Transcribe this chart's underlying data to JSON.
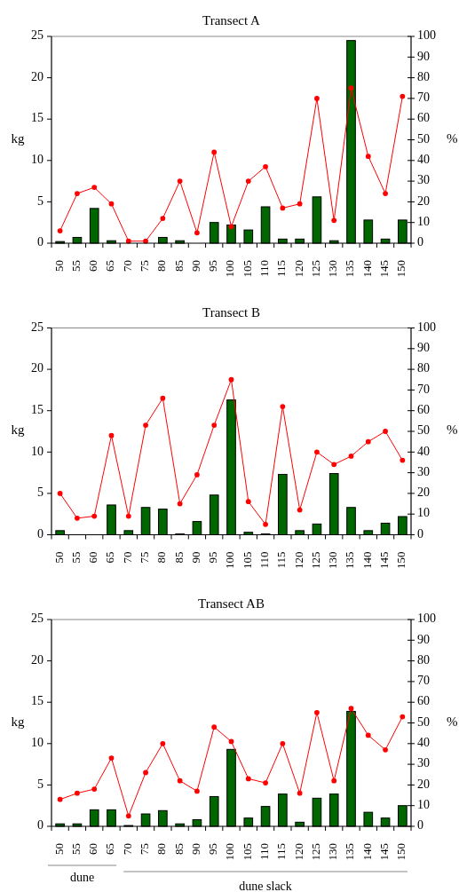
{
  "chart_data": [
    {
      "type": "bar",
      "title": "Transect A",
      "ylabel": "kg",
      "y2label": "%",
      "categories": [
        "50",
        "55",
        "60",
        "65",
        "70",
        "75",
        "80",
        "85",
        "90",
        "95",
        "100",
        "105",
        "110",
        "115",
        "120",
        "125",
        "130",
        "135",
        "140",
        "145",
        "150"
      ],
      "series": [
        {
          "type": "bar",
          "color": "#006600",
          "values": [
            0.2,
            0.7,
            4.2,
            0.3,
            0,
            0,
            0.7,
            0.3,
            0,
            2.5,
            2.2,
            1.6,
            4.4,
            0.5,
            0.5,
            5.6,
            0.3,
            24.5,
            2.8,
            0.5,
            2.8
          ]
        },
        {
          "type": "line",
          "axis": "y2",
          "color": "#ff0000",
          "values": [
            6,
            24,
            27,
            19,
            1,
            1,
            12,
            30,
            5,
            44,
            8,
            30,
            37,
            17,
            19,
            70,
            11,
            75,
            42,
            24,
            71
          ]
        }
      ],
      "ylim": [
        0,
        25
      ],
      "yticks": [
        0,
        5,
        10,
        15,
        20,
        25
      ],
      "y2lim": [
        0,
        100
      ],
      "y2ticks": [
        0,
        10,
        20,
        30,
        40,
        50,
        60,
        70,
        80,
        90,
        100
      ],
      "grid": false,
      "marker": "circle"
    },
    {
      "type": "bar",
      "title": "Transect B",
      "ylabel": "kg",
      "y2label": "%",
      "categories": [
        "50",
        "55",
        "60",
        "65",
        "70",
        "75",
        "80",
        "85",
        "90",
        "95",
        "100",
        "105",
        "110",
        "115",
        "120",
        "125",
        "130",
        "135",
        "140",
        "145",
        "150"
      ],
      "series": [
        {
          "type": "bar",
          "color": "#006600",
          "values": [
            0.5,
            0,
            0,
            3.6,
            0.5,
            3.3,
            3.1,
            0.1,
            1.6,
            4.8,
            16.3,
            0.3,
            0.1,
            7.3,
            0.5,
            1.3,
            7.4,
            3.3,
            0.5,
            1.4,
            2.2
          ]
        },
        {
          "type": "line",
          "axis": "y2",
          "color": "#ff0000",
          "values": [
            20,
            8,
            9,
            48,
            9,
            53,
            66,
            15,
            29,
            53,
            75,
            16,
            5,
            62,
            12,
            40,
            34,
            38,
            45,
            50,
            36
          ]
        }
      ],
      "ylim": [
        0,
        25
      ],
      "yticks": [
        0,
        5,
        10,
        15,
        20,
        25
      ],
      "y2lim": [
        0,
        100
      ],
      "y2ticks": [
        0,
        10,
        20,
        30,
        40,
        50,
        60,
        70,
        80,
        90,
        100
      ],
      "grid": false,
      "marker": "circle"
    },
    {
      "type": "bar",
      "title": "Transect AB",
      "ylabel": "kg",
      "y2label": "%",
      "categories": [
        "50",
        "55",
        "60",
        "65",
        "70",
        "75",
        "80",
        "85",
        "90",
        "95",
        "100",
        "105",
        "110",
        "115",
        "120",
        "125",
        "130",
        "135",
        "140",
        "145",
        "150"
      ],
      "series": [
        {
          "type": "bar",
          "color": "#006600",
          "values": [
            0.3,
            0.3,
            2.0,
            2.0,
            0.1,
            1.5,
            1.9,
            0.3,
            0.8,
            3.6,
            9.3,
            1.0,
            2.4,
            3.9,
            0.5,
            3.4,
            3.9,
            13.9,
            1.7,
            1.0,
            2.5
          ]
        },
        {
          "type": "line",
          "axis": "y2",
          "color": "#ff0000",
          "values": [
            13,
            16,
            18,
            33,
            5,
            26,
            40,
            22,
            17,
            48,
            41,
            23,
            21,
            40,
            16,
            55,
            22,
            57,
            44,
            37,
            53
          ]
        }
      ],
      "ylim": [
        0,
        25
      ],
      "yticks": [
        0,
        5,
        10,
        15,
        20,
        25
      ],
      "y2lim": [
        0,
        100
      ],
      "y2ticks": [
        0,
        10,
        20,
        30,
        40,
        50,
        60,
        70,
        80,
        90,
        100
      ],
      "grid": false,
      "marker": "circle",
      "annotations": [
        "dune",
        "dune slack"
      ]
    }
  ]
}
